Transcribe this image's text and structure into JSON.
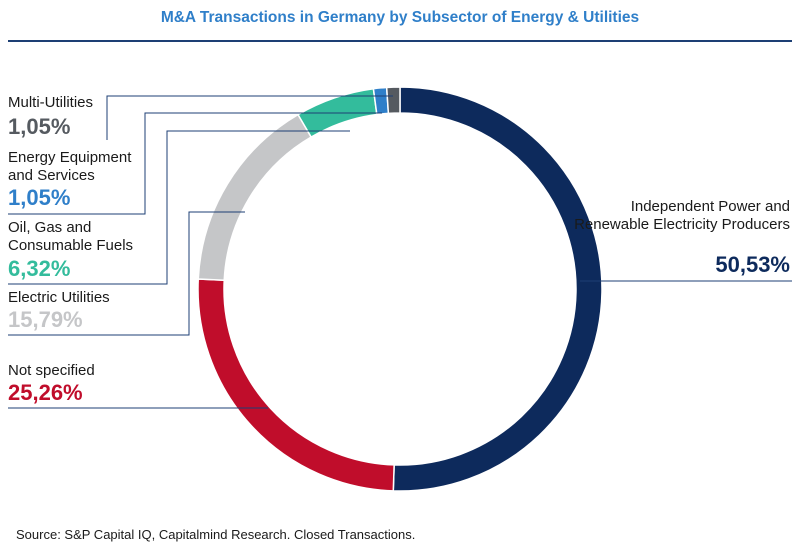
{
  "title": "M&A Transactions in Germany by Subsector of Energy & Utilities",
  "source": "Source: S&P Capital IQ, Capitalmind Research. Closed Transactions.",
  "chart_data": {
    "type": "pie",
    "donut": true,
    "title": "M&A Transactions in Germany by Subsector of Energy & Utilities",
    "categories": [
      "Independent Power and Renewable Electricity Producers",
      "Not specified",
      "Electric Utilities",
      "Oil, Gas and Consumable Fuels",
      "Energy Equipment and Services",
      "Multi-Utilities"
    ],
    "values": [
      50.53,
      25.26,
      15.79,
      6.32,
      1.05,
      1.05
    ],
    "value_labels": [
      "50,53%",
      "25,26%",
      "15,79%",
      "6,32%",
      "1,05%",
      "1,05%"
    ],
    "colors": [
      "#0d2a5c",
      "#c00d2b",
      "#c5c6c8",
      "#33bc9c",
      "#2f7fc9",
      "#555a60"
    ]
  },
  "labels": {
    "ipp": {
      "name": "Independent Power and Renewable Electricity Producers",
      "pct": "50,53%"
    },
    "ns": {
      "name": "Not specified",
      "pct": "25,26%"
    },
    "eu": {
      "name": "Electric Utilities",
      "pct": "15,79%"
    },
    "ogc": {
      "name": "Oil, Gas and Consumable Fuels",
      "pct": "6,32%"
    },
    "ees": {
      "name": "Energy Equipment and Services",
      "pct": "1,05%"
    },
    "mu": {
      "name": "Multi-Utilities",
      "pct": "1,05%"
    }
  }
}
